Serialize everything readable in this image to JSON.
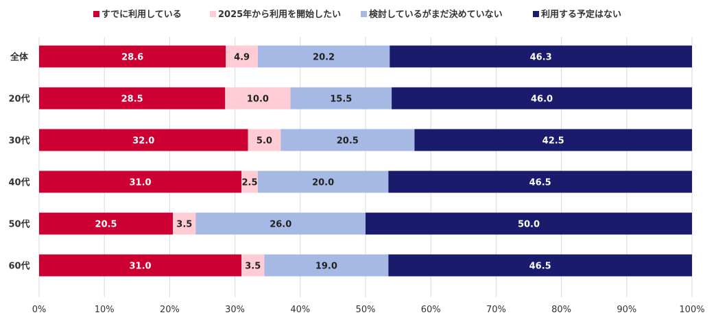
{
  "chart_data": {
    "type": "bar",
    "orientation": "horizontal",
    "stacked": true,
    "categories": [
      "全体",
      "20代",
      "30代",
      "40代",
      "50代",
      "60代"
    ],
    "series": [
      {
        "name": "すでに利用している",
        "color": "#CC0033",
        "label_color": "#ffffff",
        "values": [
          28.6,
          28.5,
          32.0,
          31.0,
          20.5,
          31.0
        ]
      },
      {
        "name": "2025年から利用を開始したい",
        "color": "#FFCCD6",
        "label_color": "#222222",
        "values": [
          4.9,
          10.0,
          5.0,
          2.5,
          3.5,
          3.5
        ]
      },
      {
        "name": "検討しているがまだ決めていない",
        "color": "#A5B9E4",
        "label_color": "#222222",
        "values": [
          20.2,
          15.5,
          20.5,
          20.0,
          26.0,
          19.0
        ]
      },
      {
        "name": "利用する予定はない",
        "color": "#1B1B6E",
        "label_color": "#ffffff",
        "values": [
          46.3,
          46.0,
          42.5,
          46.5,
          50.0,
          46.5
        ]
      }
    ],
    "xlim": [
      0,
      100
    ],
    "xticks": [
      "0%",
      "10%",
      "20%",
      "30%",
      "40%",
      "50%",
      "60%",
      "70%",
      "80%",
      "90%",
      "100%"
    ],
    "grid": true,
    "legend": "top"
  }
}
